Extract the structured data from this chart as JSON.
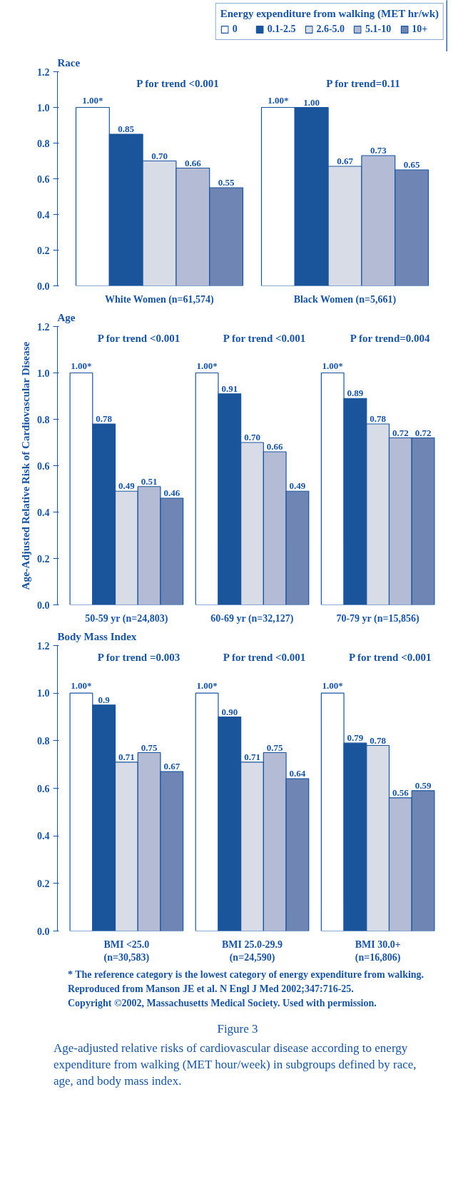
{
  "chart_data": [
    {
      "type": "bar",
      "title": "Race",
      "legend_title": "Energy expenditure from walking (MET hr/wk)",
      "legend": "top right",
      "grid": false,
      "categories": [
        "White Women (n=61,574)",
        "Black Women (n=5,661)"
      ],
      "ylim": [
        0,
        1.2
      ],
      "yticks": [
        {
          "value": 0,
          "label": "0.0"
        },
        {
          "value": 0.2,
          "label": "0.2"
        },
        {
          "value": 0.4,
          "label": "0.4"
        },
        {
          "value": 0.6,
          "label": "0.6"
        },
        {
          "value": 0.8,
          "label": "0.8"
        },
        {
          "value": 1.0,
          "label": "1.0"
        },
        {
          "value": 1.2,
          "label": "1.2"
        }
      ],
      "series": [
        {
          "name": "0",
          "color": "#ffffff",
          "values": [
            1.0,
            1.0
          ],
          "value_labels": [
            "1.00*",
            "1.00*"
          ]
        },
        {
          "name": "0.1-2.5",
          "color": "#1a559b",
          "values": [
            0.85,
            1.0
          ],
          "value_labels": [
            "0.85",
            "1.00"
          ]
        },
        {
          "name": "2.6-5.0",
          "color": "#d8dce6",
          "values": [
            0.7,
            0.67
          ],
          "value_labels": [
            "0.70",
            "0.67"
          ]
        },
        {
          "name": "5.1-10",
          "color": "#b3bcd4",
          "values": [
            0.66,
            0.73
          ],
          "value_labels": [
            "0.66",
            "0.73"
          ]
        },
        {
          "name": "10+",
          "color": "#6f86b4",
          "values": [
            0.55,
            0.65
          ],
          "value_labels": [
            "0.55",
            "0.65"
          ]
        }
      ],
      "annotations": [
        "P for trend <0.001",
        "P for trend=0.11"
      ]
    },
    {
      "type": "bar",
      "title": "Age",
      "ylabel": "Age-Adjusted Relative Risk of Cardiovascular Disease",
      "grid": false,
      "categories": [
        "50-59 yr (n=24,803)",
        "60-69 yr (n=32,127)",
        "70-79 yr (n=15,856)"
      ],
      "ylim": [
        0,
        1.2
      ],
      "yticks": [
        {
          "value": 0,
          "label": "0.0"
        },
        {
          "value": 0.2,
          "label": "0.2"
        },
        {
          "value": 0.4,
          "label": "0.4"
        },
        {
          "value": 0.6,
          "label": "0.6"
        },
        {
          "value": 0.8,
          "label": "0.8"
        },
        {
          "value": 1.0,
          "label": "1.0"
        },
        {
          "value": 1.2,
          "label": "1.2"
        }
      ],
      "series": [
        {
          "color": "#ffffff",
          "values": [
            1.0,
            1.0,
            1.0
          ],
          "value_labels": [
            "1.00*",
            "1.00*",
            "1.00*"
          ]
        },
        {
          "color": "#1a559b",
          "values": [
            0.78,
            0.91,
            0.89
          ],
          "value_labels": [
            "0.78",
            "0.91",
            "0.89"
          ]
        },
        {
          "color": "#d8dce6",
          "values": [
            0.49,
            0.7,
            0.78
          ],
          "value_labels": [
            "0.49",
            "0.70",
            "0.78"
          ]
        },
        {
          "color": "#b3bcd4",
          "values": [
            0.51,
            0.66,
            0.72
          ],
          "value_labels": [
            "0.51",
            "0.66",
            "0.72"
          ]
        },
        {
          "color": "#6f86b4",
          "values": [
            0.46,
            0.49,
            0.72
          ],
          "value_labels": [
            "0.46",
            "0.49",
            "0.72"
          ]
        }
      ],
      "annotations": [
        "P for trend <0.001",
        "P for trend <0.001",
        "P for trend=0.004"
      ]
    },
    {
      "type": "bar",
      "title": "Body Mass Index",
      "grid": false,
      "categories": [
        "BMI <25.0\n(n=30,583)",
        "BMI 25.0-29.9\n(n=24,590)",
        "BMI 30.0+\n(n=16,806)"
      ],
      "ylim": [
        0,
        1.2
      ],
      "yticks": [
        {
          "value": 0,
          "label": "0.0"
        },
        {
          "value": 0.2,
          "label": "0.2"
        },
        {
          "value": 0.4,
          "label": "0.4"
        },
        {
          "value": 0.6,
          "label": "0.6"
        },
        {
          "value": 0.8,
          "label": "0.8"
        },
        {
          "value": 1.0,
          "label": "1.0"
        },
        {
          "value": 1.2,
          "label": "1.2"
        }
      ],
      "series": [
        {
          "color": "#ffffff",
          "values": [
            1.0,
            1.0,
            1.0
          ],
          "value_labels": [
            "1.00*",
            "1.00*",
            "1.00*"
          ]
        },
        {
          "color": "#1a559b",
          "values": [
            0.95,
            0.9,
            0.79
          ],
          "value_labels": [
            "0.9",
            "0.90",
            "0.79"
          ]
        },
        {
          "color": "#d8dce6",
          "values": [
            0.71,
            0.71,
            0.78
          ],
          "value_labels": [
            "0.71",
            "0.71",
            "0.78"
          ]
        },
        {
          "color": "#b3bcd4",
          "values": [
            0.75,
            0.75,
            0.56
          ],
          "value_labels": [
            "0.75",
            "0.75",
            "0.56"
          ]
        },
        {
          "color": "#6f86b4",
          "values": [
            0.67,
            0.64,
            0.59
          ],
          "value_labels": [
            "0.67",
            "0.64",
            "0.59"
          ]
        }
      ],
      "annotations": [
        "P for trend =0.003",
        "P for trend <0.001",
        "P for trend <0.001",
        "* The reference category is the lowest category of energy expenditure from walking.",
        "Reproduced from Manson JE et al. N Engl J Med 2002;347:716-25.",
        "Copyright ©2002, Massachusetts Medical Society. Used with permission.",
        "Figure 3",
        "Age-adjusted relative risks of cardiovascular disease according to energy expenditure from walking (MET hour/week) in subgroups defined by race, age, and body mass index."
      ]
    }
  ]
}
